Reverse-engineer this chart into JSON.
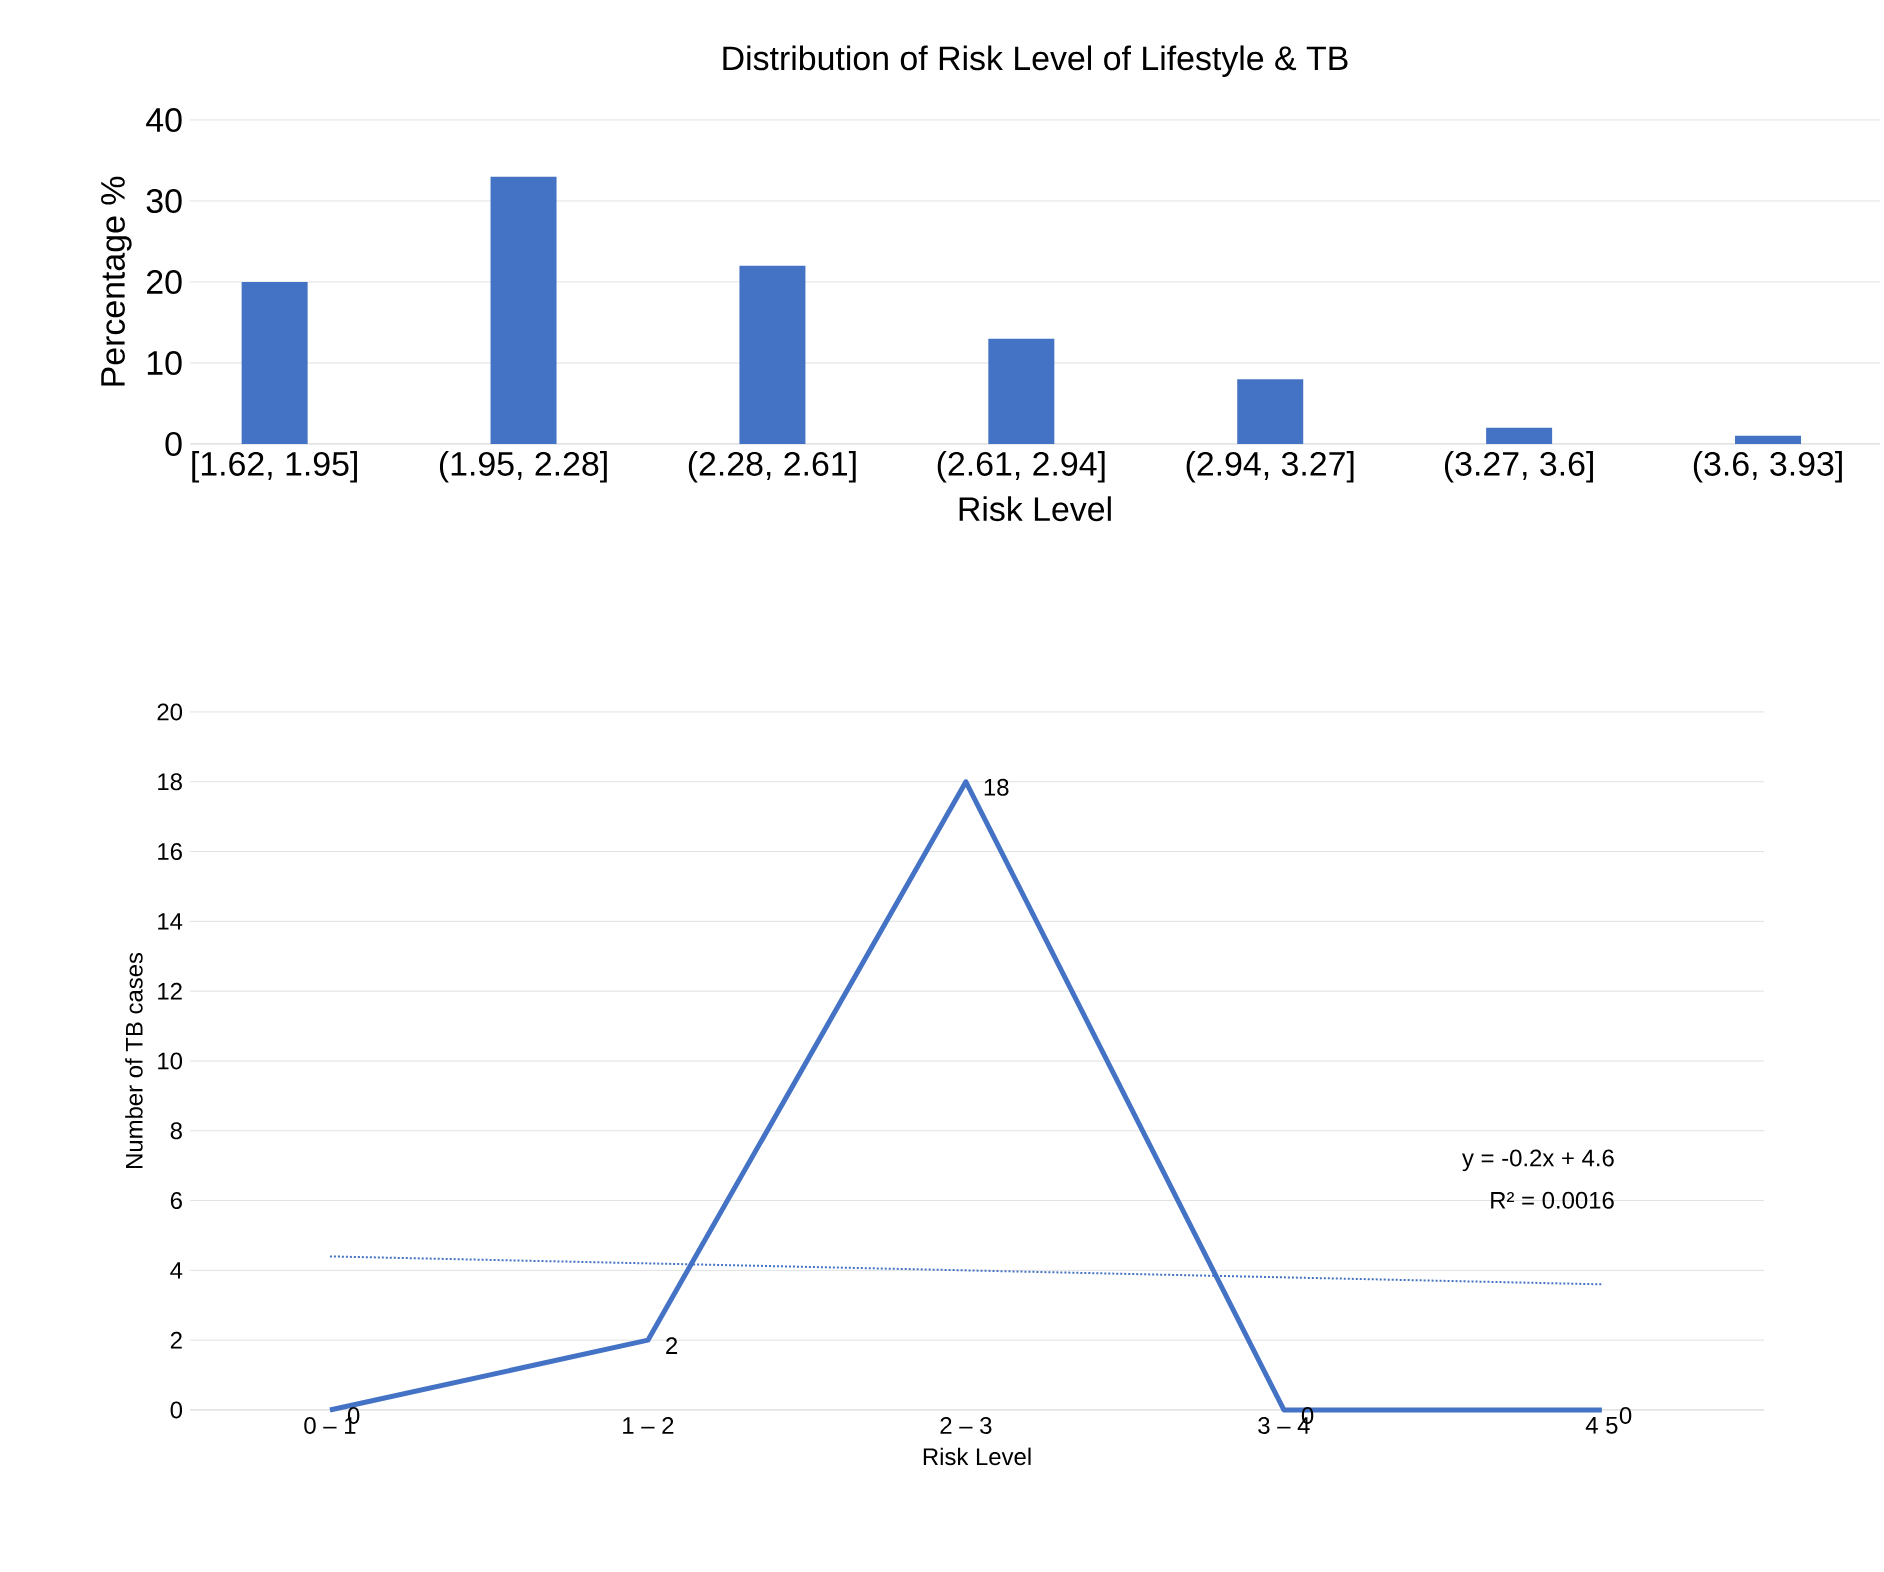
{
  "chart_data": [
    {
      "type": "bar",
      "title": "Distribution of Risk Level of Lifestyle & TB",
      "xlabel": "Risk Level",
      "ylabel": "Percentage %",
      "categories": [
        "[1.62, 1.95]",
        "(1.95, 2.28]",
        "(2.28, 2.61]",
        "(2.61, 2.94]",
        "(2.94, 3.27]",
        "(3.27, 3.6]",
        "(3.6, 3.93]"
      ],
      "values": [
        20,
        33,
        22,
        13,
        8,
        2,
        1
      ],
      "color": "#4472c4",
      "ylim": [
        0,
        40
      ],
      "yticks": [
        0,
        10,
        20,
        30,
        40
      ],
      "grid": "y"
    },
    {
      "type": "line",
      "xlabel": "Risk Level",
      "ylabel": "Number of TB cases",
      "categories": [
        "0 – 1",
        "1 – 2",
        "2 – 3",
        "3 – 4",
        "4 5"
      ],
      "series": [
        {
          "color": "#4472c4",
          "values": [
            0,
            2,
            18,
            0,
            0
          ],
          "value_labels": [
            "0",
            "2",
            "18",
            "0",
            "0"
          ],
          "line_style": "solid"
        },
        {
          "type": "line",
          "color": "#4472c4",
          "values": [
            4.4,
            4.2,
            4.0,
            3.8,
            3.6
          ],
          "line_style": "dotted"
        }
      ],
      "ylim": [
        0,
        20
      ],
      "yticks": [
        0,
        2,
        4,
        6,
        8,
        10,
        12,
        14,
        16,
        18,
        20
      ],
      "grid": "y",
      "annotations": [
        "y = -0.2x + 4.6",
        "R² = 0.0016"
      ]
    }
  ]
}
